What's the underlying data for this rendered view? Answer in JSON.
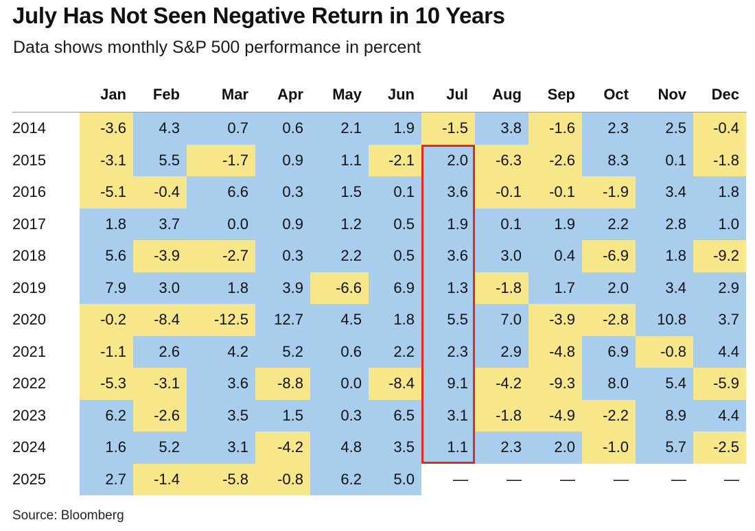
{
  "title": "July Has Not Seen Negative Return in 10 Years",
  "subtitle": "Data shows monthly S&P 500 performance in percent",
  "source": "Source: Bloomberg",
  "colors": {
    "positive": "#a9cdec",
    "negative": "#f8e68a",
    "highlight_border": "#e22a1c"
  },
  "chart_data": {
    "type": "table",
    "columns": [
      "Jan",
      "Feb",
      "Mar",
      "Apr",
      "May",
      "Jun",
      "Jul",
      "Aug",
      "Sep",
      "Oct",
      "Nov",
      "Dec"
    ],
    "highlighted_column": "Jul",
    "highlighted_years": [
      "2015",
      "2024"
    ],
    "rows": [
      {
        "year": "2014",
        "values": [
          "-3.6",
          "4.3",
          "0.7",
          "0.6",
          "2.1",
          "1.9",
          "-1.5",
          "3.8",
          "-1.6",
          "2.3",
          "2.5",
          "-0.4"
        ]
      },
      {
        "year": "2015",
        "values": [
          "-3.1",
          "5.5",
          "-1.7",
          "0.9",
          "1.1",
          "-2.1",
          "2.0",
          "-6.3",
          "-2.6",
          "8.3",
          "0.1",
          "-1.8"
        ]
      },
      {
        "year": "2016",
        "values": [
          "-5.1",
          "-0.4",
          "6.6",
          "0.3",
          "1.5",
          "0.1",
          "3.6",
          "-0.1",
          "-0.1",
          "-1.9",
          "3.4",
          "1.8"
        ]
      },
      {
        "year": "2017",
        "values": [
          "1.8",
          "3.7",
          "0.0",
          "0.9",
          "1.2",
          "0.5",
          "1.9",
          "0.1",
          "1.9",
          "2.2",
          "2.8",
          "1.0"
        ]
      },
      {
        "year": "2018",
        "values": [
          "5.6",
          "-3.9",
          "-2.7",
          "0.3",
          "2.2",
          "0.5",
          "3.6",
          "3.0",
          "0.4",
          "-6.9",
          "1.8",
          "-9.2"
        ]
      },
      {
        "year": "2019",
        "values": [
          "7.9",
          "3.0",
          "1.8",
          "3.9",
          "-6.6",
          "6.9",
          "1.3",
          "-1.8",
          "1.7",
          "2.0",
          "3.4",
          "2.9"
        ]
      },
      {
        "year": "2020",
        "values": [
          "-0.2",
          "-8.4",
          "-12.5",
          "12.7",
          "4.5",
          "1.8",
          "5.5",
          "7.0",
          "-3.9",
          "-2.8",
          "10.8",
          "3.7"
        ]
      },
      {
        "year": "2021",
        "values": [
          "-1.1",
          "2.6",
          "4.2",
          "5.2",
          "0.6",
          "2.2",
          "2.3",
          "2.9",
          "-4.8",
          "6.9",
          "-0.8",
          "4.4"
        ]
      },
      {
        "year": "2022",
        "values": [
          "-5.3",
          "-3.1",
          "3.6",
          "-8.8",
          "0.0",
          "-8.4",
          "9.1",
          "-4.2",
          "-9.3",
          "8.0",
          "5.4",
          "-5.9"
        ]
      },
      {
        "year": "2023",
        "values": [
          "6.2",
          "-2.6",
          "3.5",
          "1.5",
          "0.3",
          "6.5",
          "3.1",
          "-1.8",
          "-4.9",
          "-2.2",
          "8.9",
          "4.4"
        ]
      },
      {
        "year": "2024",
        "values": [
          "1.6",
          "5.2",
          "3.1",
          "-4.2",
          "4.8",
          "3.5",
          "1.1",
          "2.3",
          "2.0",
          "-1.0",
          "5.7",
          "-2.5"
        ]
      },
      {
        "year": "2025",
        "values": [
          "2.7",
          "-1.4",
          "-5.8",
          "-0.8",
          "6.2",
          "5.0",
          "—",
          "—",
          "—",
          "—",
          "—",
          "—"
        ]
      }
    ]
  }
}
